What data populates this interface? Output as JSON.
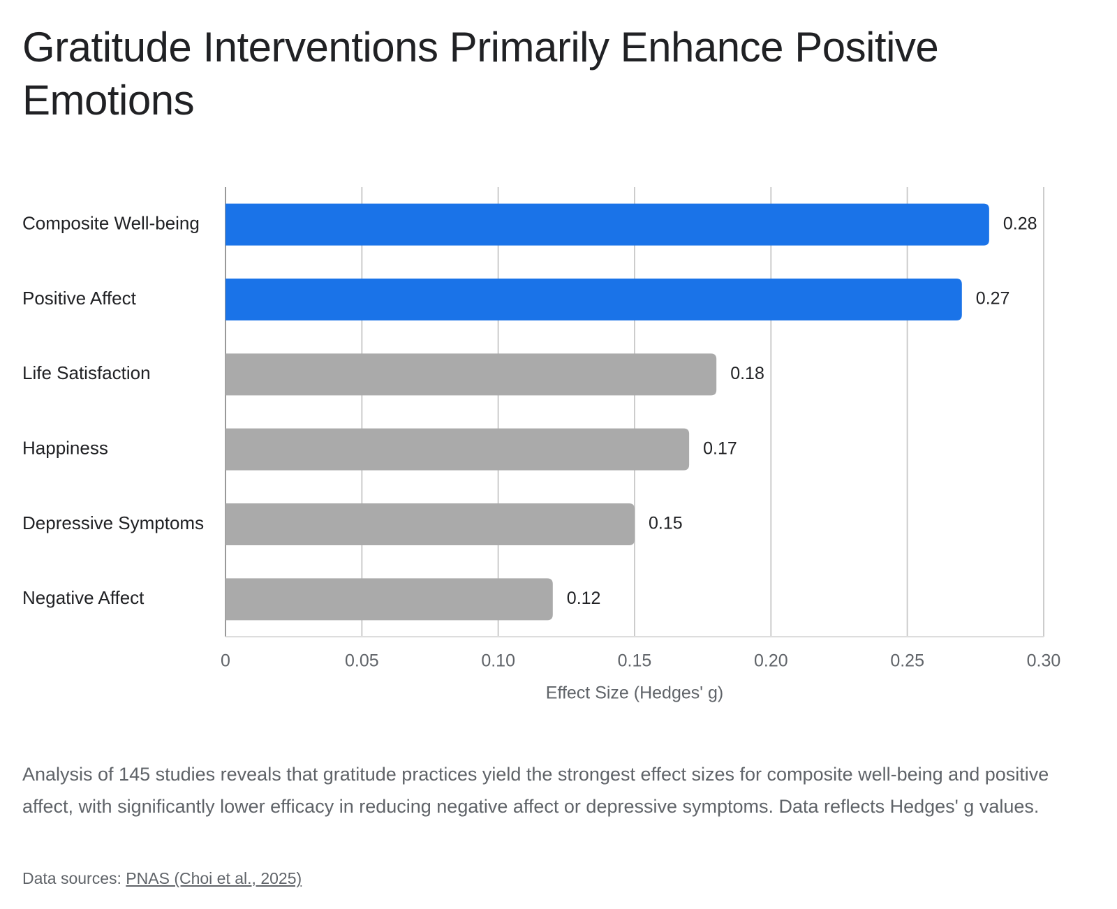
{
  "chart_data": {
    "type": "hbar",
    "title": "Gratitude Interventions Primarily Enhance Positive Emotions",
    "categories": [
      "Composite Well-being",
      "Positive Affect",
      "Life Satisfaction",
      "Happiness",
      "Depressive Symptoms",
      "Negative Affect"
    ],
    "values": [
      0.28,
      0.27,
      0.18,
      0.17,
      0.15,
      0.12
    ],
    "colors": [
      "#1a73e8",
      "#1a73e8",
      "#aaaaaa",
      "#aaaaaa",
      "#aaaaaa",
      "#aaaaaa"
    ],
    "xlim": [
      0,
      0.3
    ],
    "xticks": [
      0,
      0.05,
      {
        "value": 0.1,
        "label": "0.10"
      },
      0.15,
      {
        "value": 0.2,
        "label": "0.20"
      },
      0.25,
      {
        "value": 0.3,
        "label": "0.30"
      }
    ],
    "xlabel": "Effect Size (Hedges' g)",
    "grid": true,
    "description": "Analysis of 145 studies reveals that gratitude practices yield the strongest effect sizes for composite well-being and positive affect, with significantly lower efficacy in reducing negative affect or depressive symptoms. Data reflects Hedges' g values.",
    "source_prefix": "Data sources:",
    "source_link": "PNAS (Choi et al., 2025)"
  }
}
